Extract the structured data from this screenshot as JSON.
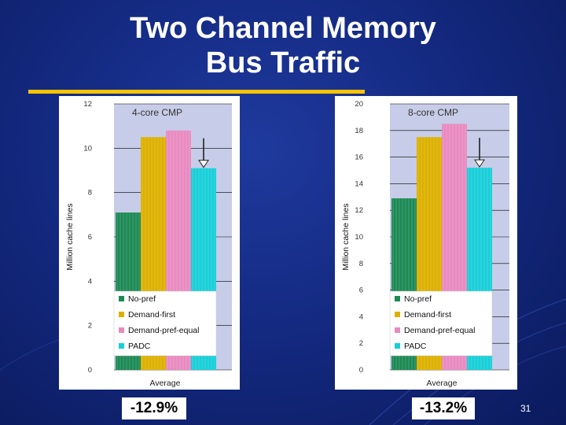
{
  "slide": {
    "title_line1": "Two Channel Memory",
    "title_line2": "Bus Traffic",
    "accent_color": "#f5c400",
    "background_color": "#142a82",
    "slide_number": "31"
  },
  "callouts": [
    {
      "label": "-12.9%"
    },
    {
      "label": "-13.2%"
    }
  ],
  "chart_data": [
    {
      "type": "bar",
      "title": "4-core CMP",
      "ylabel": "Million cache lines",
      "xlabel": "",
      "categories": [
        "Average"
      ],
      "ylim": [
        0,
        12
      ],
      "yticks": [
        "0",
        "2",
        "4",
        "6",
        "8",
        "10",
        "12"
      ],
      "grid": true,
      "legend_position": "bottom-center",
      "series": [
        {
          "name": "No-pref",
          "values": [
            7.1
          ],
          "color": "#1d8a55"
        },
        {
          "name": "Demand-first",
          "values": [
            10.5
          ],
          "color": "#ddb000"
        },
        {
          "name": "Demand-pref-equal",
          "values": [
            10.8
          ],
          "color": "#e98ac0"
        },
        {
          "name": "PADC",
          "values": [
            9.1
          ],
          "color": "#18cfd8"
        }
      ],
      "annotation": "arrow-over-PADC"
    },
    {
      "type": "bar",
      "title": "8-core CMP",
      "ylabel": "Million cache lines",
      "xlabel": "",
      "categories": [
        "Average"
      ],
      "ylim": [
        0,
        20
      ],
      "yticks": [
        "0",
        "2",
        "4",
        "6",
        "8",
        "10",
        "12",
        "14",
        "16",
        "18",
        "20"
      ],
      "grid": true,
      "legend_position": "bottom-center",
      "series": [
        {
          "name": "No-pref",
          "values": [
            12.9
          ],
          "color": "#1d8a55"
        },
        {
          "name": "Demand-first",
          "values": [
            17.5
          ],
          "color": "#ddb000"
        },
        {
          "name": "Demand-pref-equal",
          "values": [
            18.5
          ],
          "color": "#e98ac0"
        },
        {
          "name": "PADC",
          "values": [
            15.2
          ],
          "color": "#18cfd8"
        }
      ],
      "annotation": "arrow-over-PADC"
    }
  ]
}
